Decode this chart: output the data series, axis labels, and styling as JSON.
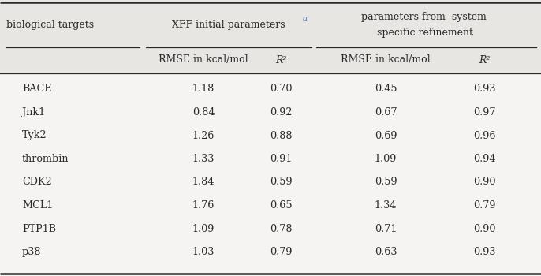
{
  "bg_color": "#e8e6e3",
  "white_color": "#f5f4f2",
  "text_color": "#2a2a2a",
  "blue_color": "#4472c4",
  "rows": [
    [
      "BACE",
      "1.18",
      "0.70",
      "0.45",
      "0.93"
    ],
    [
      "Jnk1",
      "0.84",
      "0.92",
      "0.67",
      "0.97"
    ],
    [
      "Tyk2",
      "1.26",
      "0.88",
      "0.69",
      "0.96"
    ],
    [
      "thrombin",
      "1.33",
      "0.91",
      "1.09",
      "0.94"
    ],
    [
      "CDK2",
      "1.84",
      "0.59",
      "0.59",
      "0.90"
    ],
    [
      "MCL1",
      "1.76",
      "0.65",
      "1.34",
      "0.79"
    ],
    [
      "PTP1B",
      "1.09",
      "0.78",
      "0.71",
      "0.90"
    ],
    [
      "p38",
      "1.03",
      "0.79",
      "0.63",
      "0.93"
    ]
  ],
  "col1_header": "biological targets",
  "col2_header": "XFF initial parameters",
  "col2_superscript": "a",
  "col3_header_line1": "parameters from  system-",
  "col3_header_line2": "specific refinement",
  "sub_col1": "RMSE in kcal/mol",
  "sub_col2": "R²",
  "sub_col3": "RMSE in kcal/mol",
  "sub_col4": "R²",
  "header_fontsize": 9.0,
  "data_fontsize": 9.2,
  "fig_width": 6.86,
  "fig_height": 3.5,
  "dpi": 100
}
